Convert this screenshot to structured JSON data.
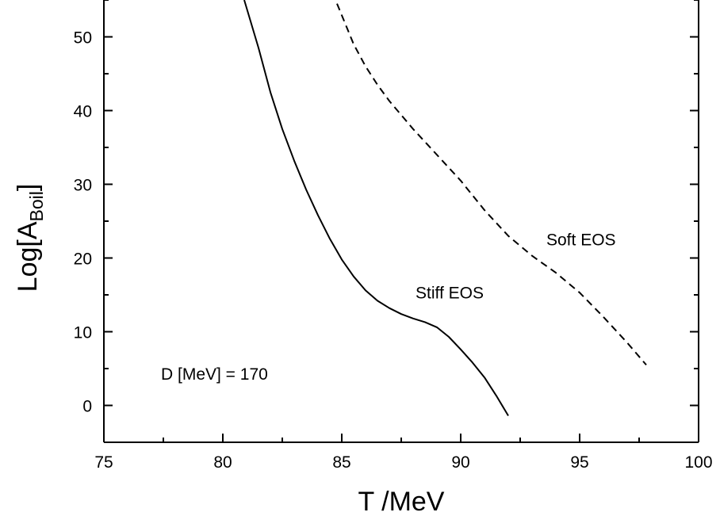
{
  "chart_data": {
    "type": "line",
    "xlabel": "T /MeV",
    "ylabel_main": "Log[A",
    "ylabel_sub": "Boil",
    "ylabel_end": "]",
    "xlim": [
      75,
      100
    ],
    "ylim": [
      -5,
      55
    ],
    "xticks": [
      75,
      80,
      85,
      90,
      95,
      100
    ],
    "yticks": [
      0,
      10,
      20,
      30,
      40,
      50
    ],
    "grid": false,
    "annotations": [
      {
        "text": "D [MeV] = 170",
        "x": 77.4,
        "y": 3.5
      },
      {
        "text": "Stiff EOS",
        "x": 88.1,
        "y": 14.5
      },
      {
        "text": "Soft EOS",
        "x": 93.6,
        "y": 21.7
      }
    ],
    "series": [
      {
        "name": "Stiff EOS",
        "style": "solid",
        "x": [
          80.9,
          81.5,
          82.0,
          82.5,
          83.0,
          83.5,
          84.0,
          84.5,
          85.0,
          85.5,
          86.0,
          86.5,
          87.0,
          87.5,
          88.0,
          88.5,
          89.0,
          89.5,
          90.0,
          90.5,
          91.0,
          91.5,
          92.0
        ],
        "y": [
          55.0,
          48.5,
          42.5,
          37.5,
          33.2,
          29.3,
          25.8,
          22.6,
          19.8,
          17.5,
          15.6,
          14.2,
          13.2,
          12.4,
          11.8,
          11.3,
          10.6,
          9.3,
          7.6,
          5.8,
          3.8,
          1.3,
          -1.4
        ]
      },
      {
        "name": "Soft EOS",
        "style": "dashed",
        "x": [
          84.8,
          85.5,
          86.0,
          86.5,
          87.0,
          88.0,
          89.0,
          90.0,
          91.0,
          92.0,
          93.0,
          94.0,
          95.0,
          96.0,
          97.0,
          97.8
        ],
        "y": [
          54.5,
          49.0,
          46.0,
          43.5,
          41.3,
          37.5,
          34.0,
          30.5,
          26.5,
          23.0,
          20.3,
          18.0,
          15.3,
          12.0,
          8.5,
          5.5
        ]
      }
    ]
  }
}
